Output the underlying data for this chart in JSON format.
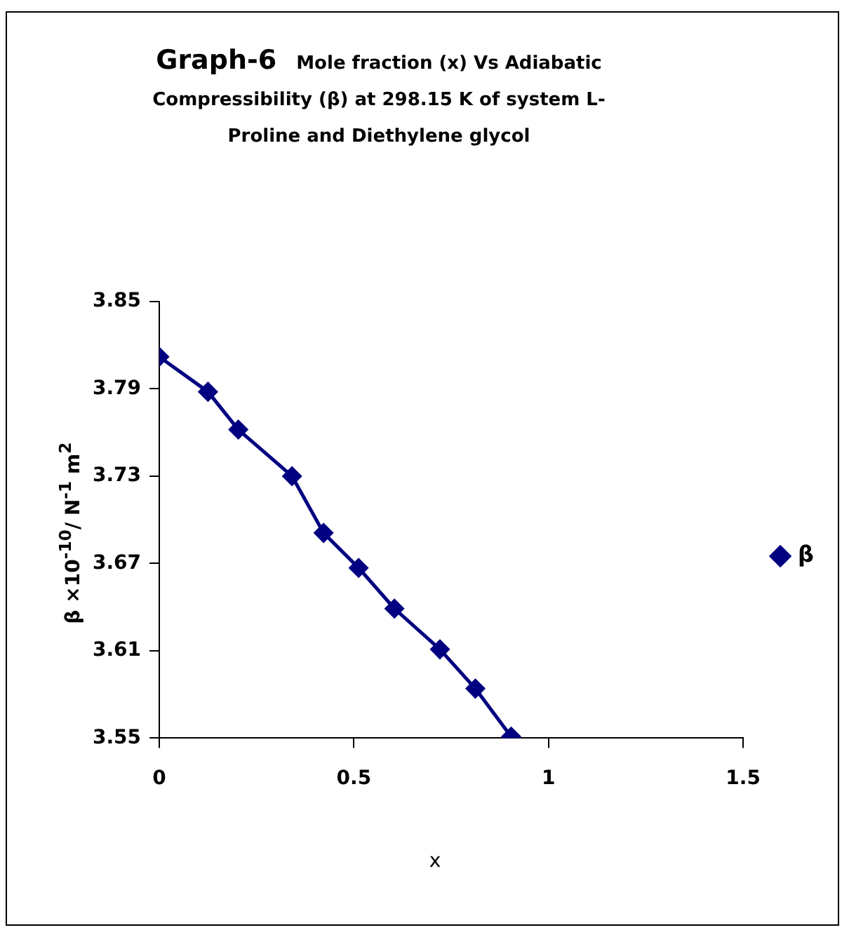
{
  "chart_data": {
    "type": "line",
    "title": "Graph-6",
    "subtitle": "Mole fraction (x) Vs Adiabatic Compressibility (β) at 298.15 K of system L-Proline  and  Diethylene  glycol",
    "xlabel": "x",
    "ylabel": "β ×10$^{-10}$/ N$^{-1}$ m$^{2}$",
    "x": [
      0,
      0.125,
      0.203,
      0.341,
      0.422,
      0.512,
      0.604,
      0.721,
      0.812,
      0.904
    ],
    "series": [
      {
        "name": "β",
        "color": "#000080",
        "values": [
          3.812,
          3.788,
          3.762,
          3.73,
          3.691,
          3.667,
          3.639,
          3.611,
          3.584,
          3.551
        ]
      }
    ],
    "xlim": [
      0,
      1.5
    ],
    "xticks": [
      0,
      0.5,
      1,
      1.5
    ],
    "ylim": [
      3.55,
      3.85
    ],
    "yticks": [
      3.55,
      3.61,
      3.67,
      3.73,
      3.79,
      3.85
    ],
    "grid": false,
    "legend": "right",
    "marker": "diamond",
    "line_style": "solid"
  }
}
